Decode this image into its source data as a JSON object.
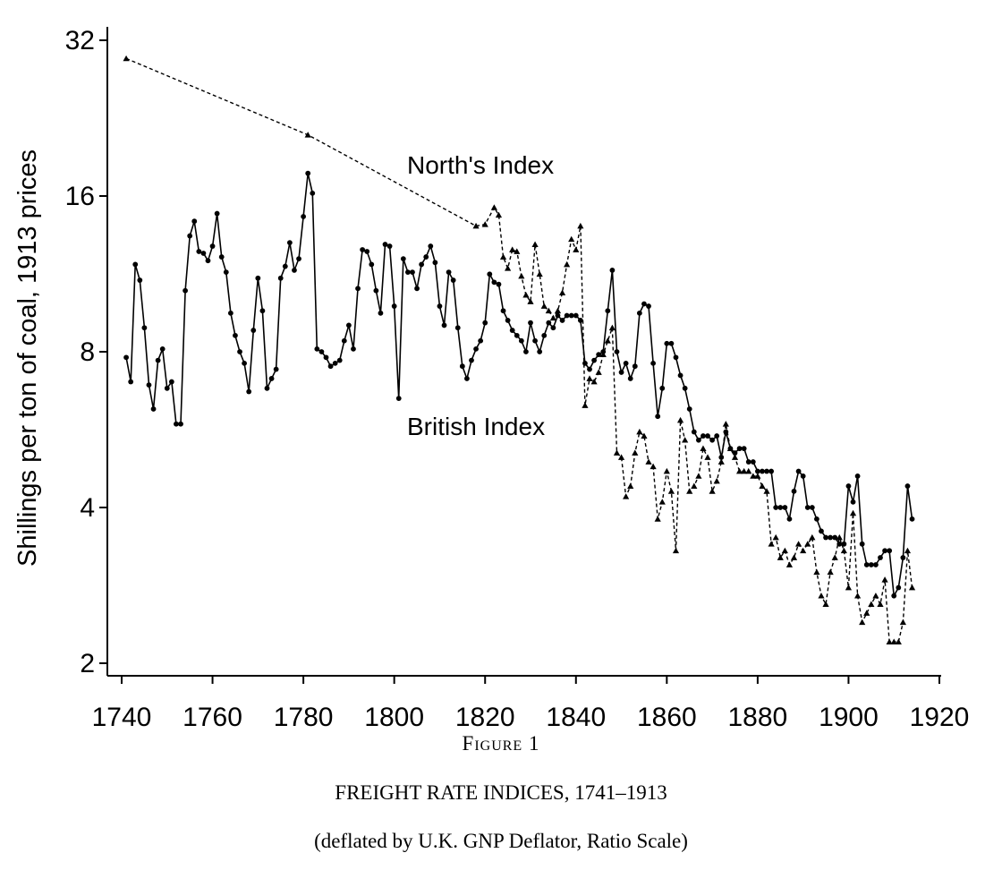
{
  "figure_label": "Figure 1",
  "title": "FREIGHT RATE INDICES, 1741–1913",
  "subtitle": "(deflated by U.K. GNP Deflator, Ratio Scale)",
  "chart_data": {
    "type": "line",
    "ylabel": "Shillings per ton of coal, 1913 prices",
    "xlabel": "",
    "yscale": "log2",
    "xlim": [
      1735,
      1920
    ],
    "ylim": [
      1.9,
      34
    ],
    "xticks": [
      1740,
      1760,
      1780,
      1800,
      1820,
      1840,
      1860,
      1880,
      1900,
      1920
    ],
    "xtick_labels": [
      "1740",
      "1760",
      "1780",
      "1800",
      "1820",
      "1840",
      "1860",
      "1880",
      "1900",
      "1920"
    ],
    "yticks": [
      2,
      4,
      8,
      16,
      32
    ],
    "ytick_labels": [
      "2",
      "4",
      "8",
      "16",
      "32"
    ],
    "annotations": [
      {
        "text": "North's Index",
        "series": "north"
      },
      {
        "text": "British Index",
        "series": "british"
      }
    ],
    "series": [
      {
        "key": "british",
        "style": "solid",
        "marker": "circle",
        "color": "#000000",
        "points": [
          [
            1741,
            7.8
          ],
          [
            1742,
            7.0
          ],
          [
            1743,
            11.8
          ],
          [
            1744,
            11.0
          ],
          [
            1745,
            8.9
          ],
          [
            1746,
            6.9
          ],
          [
            1747,
            6.2
          ],
          [
            1748,
            7.7
          ],
          [
            1749,
            8.1
          ],
          [
            1750,
            6.8
          ],
          [
            1751,
            7.0
          ],
          [
            1752,
            5.8
          ],
          [
            1753,
            5.8
          ],
          [
            1754,
            10.5
          ],
          [
            1755,
            13.4
          ],
          [
            1756,
            14.3
          ],
          [
            1757,
            12.5
          ],
          [
            1758,
            12.4
          ],
          [
            1759,
            12.0
          ],
          [
            1760,
            12.8
          ],
          [
            1761,
            14.8
          ],
          [
            1762,
            12.2
          ],
          [
            1763,
            11.4
          ],
          [
            1764,
            9.5
          ],
          [
            1765,
            8.6
          ],
          [
            1766,
            8.0
          ],
          [
            1767,
            7.6
          ],
          [
            1768,
            6.7
          ],
          [
            1769,
            8.8
          ],
          [
            1770,
            11.1
          ],
          [
            1771,
            9.6
          ],
          [
            1772,
            6.8
          ],
          [
            1773,
            7.1
          ],
          [
            1774,
            7.4
          ],
          [
            1775,
            11.1
          ],
          [
            1776,
            11.7
          ],
          [
            1777,
            13.0
          ],
          [
            1778,
            11.5
          ],
          [
            1779,
            12.1
          ],
          [
            1780,
            14.6
          ],
          [
            1781,
            17.7
          ],
          [
            1782,
            16.2
          ],
          [
            1783,
            8.1
          ],
          [
            1784,
            8.0
          ],
          [
            1785,
            7.8
          ],
          [
            1786,
            7.5
          ],
          [
            1787,
            7.6
          ],
          [
            1788,
            7.7
          ],
          [
            1789,
            8.4
          ],
          [
            1790,
            9.0
          ],
          [
            1791,
            8.1
          ],
          [
            1792,
            10.6
          ],
          [
            1793,
            12.6
          ],
          [
            1794,
            12.5
          ],
          [
            1795,
            11.8
          ],
          [
            1796,
            10.5
          ],
          [
            1797,
            9.5
          ],
          [
            1798,
            12.9
          ],
          [
            1799,
            12.8
          ],
          [
            1800,
            9.8
          ],
          [
            1801,
            6.5
          ],
          [
            1802,
            12.1
          ],
          [
            1803,
            11.4
          ],
          [
            1804,
            11.4
          ],
          [
            1805,
            10.6
          ],
          [
            1806,
            11.8
          ],
          [
            1807,
            12.2
          ],
          [
            1808,
            12.8
          ],
          [
            1809,
            11.9
          ],
          [
            1810,
            9.8
          ],
          [
            1811,
            9.0
          ],
          [
            1812,
            11.4
          ],
          [
            1813,
            11.0
          ],
          [
            1814,
            8.9
          ],
          [
            1815,
            7.5
          ],
          [
            1816,
            7.1
          ],
          [
            1817,
            7.7
          ],
          [
            1818,
            8.1
          ],
          [
            1819,
            8.4
          ],
          [
            1820,
            9.1
          ],
          [
            1821,
            11.3
          ],
          [
            1822,
            10.9
          ],
          [
            1823,
            10.8
          ],
          [
            1824,
            9.6
          ],
          [
            1825,
            9.2
          ],
          [
            1826,
            8.8
          ],
          [
            1827,
            8.6
          ],
          [
            1828,
            8.4
          ],
          [
            1829,
            8.0
          ],
          [
            1830,
            9.1
          ],
          [
            1831,
            8.4
          ],
          [
            1832,
            8.0
          ],
          [
            1833,
            8.6
          ],
          [
            1834,
            9.1
          ],
          [
            1835,
            8.9
          ],
          [
            1836,
            9.4
          ],
          [
            1837,
            9.2
          ],
          [
            1838,
            9.4
          ],
          [
            1839,
            9.4
          ],
          [
            1840,
            9.4
          ],
          [
            1841,
            9.2
          ],
          [
            1842,
            7.6
          ],
          [
            1843,
            7.4
          ],
          [
            1844,
            7.7
          ],
          [
            1845,
            7.9
          ],
          [
            1846,
            8.0
          ],
          [
            1847,
            9.6
          ],
          [
            1848,
            11.5
          ],
          [
            1849,
            8.0
          ],
          [
            1850,
            7.3
          ],
          [
            1851,
            7.6
          ],
          [
            1852,
            7.1
          ],
          [
            1853,
            7.5
          ],
          [
            1854,
            9.5
          ],
          [
            1855,
            9.9
          ],
          [
            1856,
            9.8
          ],
          [
            1857,
            7.6
          ],
          [
            1858,
            6.0
          ],
          [
            1859,
            6.8
          ],
          [
            1860,
            8.3
          ],
          [
            1861,
            8.3
          ],
          [
            1862,
            7.8
          ],
          [
            1863,
            7.2
          ],
          [
            1864,
            6.8
          ],
          [
            1865,
            6.2
          ],
          [
            1866,
            5.6
          ],
          [
            1867,
            5.4
          ],
          [
            1868,
            5.5
          ],
          [
            1869,
            5.5
          ],
          [
            1870,
            5.4
          ],
          [
            1871,
            5.5
          ],
          [
            1872,
            5.0
          ],
          [
            1873,
            5.6
          ],
          [
            1874,
            5.2
          ],
          [
            1875,
            5.1
          ],
          [
            1876,
            5.2
          ],
          [
            1877,
            5.2
          ],
          [
            1878,
            4.9
          ],
          [
            1879,
            4.9
          ],
          [
            1880,
            4.7
          ],
          [
            1881,
            4.7
          ],
          [
            1882,
            4.7
          ],
          [
            1883,
            4.7
          ],
          [
            1884,
            4.0
          ],
          [
            1885,
            4.0
          ],
          [
            1886,
            4.0
          ],
          [
            1887,
            3.8
          ],
          [
            1888,
            4.3
          ],
          [
            1889,
            4.7
          ],
          [
            1890,
            4.6
          ],
          [
            1891,
            4.0
          ],
          [
            1892,
            4.0
          ],
          [
            1893,
            3.8
          ],
          [
            1894,
            3.6
          ],
          [
            1895,
            3.5
          ],
          [
            1896,
            3.5
          ],
          [
            1897,
            3.5
          ],
          [
            1898,
            3.4
          ],
          [
            1899,
            3.4
          ],
          [
            1900,
            4.4
          ],
          [
            1901,
            4.1
          ],
          [
            1902,
            4.6
          ],
          [
            1903,
            3.4
          ],
          [
            1904,
            3.1
          ],
          [
            1905,
            3.1
          ],
          [
            1906,
            3.1
          ],
          [
            1907,
            3.2
          ],
          [
            1908,
            3.3
          ],
          [
            1909,
            3.3
          ],
          [
            1910,
            2.7
          ],
          [
            1911,
            2.8
          ],
          [
            1912,
            3.2
          ],
          [
            1913,
            4.4
          ],
          [
            1914,
            3.8
          ]
        ]
      },
      {
        "key": "north",
        "style": "dashed",
        "marker": "triangle",
        "color": "#000000",
        "points": [
          [
            1741,
            29.5
          ],
          [
            1781,
            21.0
          ],
          [
            1818,
            14.0
          ],
          [
            1820,
            14.1
          ],
          [
            1822,
            15.2
          ],
          [
            1823,
            14.7
          ],
          [
            1824,
            12.2
          ],
          [
            1825,
            11.6
          ],
          [
            1826,
            12.6
          ],
          [
            1827,
            12.5
          ],
          [
            1828,
            11.2
          ],
          [
            1829,
            10.3
          ],
          [
            1830,
            10.0
          ],
          [
            1831,
            12.9
          ],
          [
            1832,
            11.3
          ],
          [
            1833,
            9.8
          ],
          [
            1834,
            9.6
          ],
          [
            1835,
            9.3
          ],
          [
            1836,
            9.6
          ],
          [
            1837,
            10.4
          ],
          [
            1838,
            11.8
          ],
          [
            1839,
            13.2
          ],
          [
            1840,
            12.6
          ],
          [
            1841,
            14.0
          ],
          [
            1842,
            6.3
          ],
          [
            1843,
            7.1
          ],
          [
            1844,
            7.0
          ],
          [
            1845,
            7.3
          ],
          [
            1846,
            7.9
          ],
          [
            1847,
            8.4
          ],
          [
            1848,
            8.9
          ],
          [
            1849,
            5.1
          ],
          [
            1850,
            5.0
          ],
          [
            1851,
            4.2
          ],
          [
            1852,
            4.4
          ],
          [
            1853,
            5.1
          ],
          [
            1854,
            5.6
          ],
          [
            1855,
            5.5
          ],
          [
            1856,
            4.9
          ],
          [
            1857,
            4.8
          ],
          [
            1858,
            3.8
          ],
          [
            1859,
            4.1
          ],
          [
            1860,
            4.7
          ],
          [
            1861,
            4.3
          ],
          [
            1862,
            3.3
          ],
          [
            1863,
            5.9
          ],
          [
            1864,
            5.4
          ],
          [
            1865,
            4.3
          ],
          [
            1866,
            4.4
          ],
          [
            1867,
            4.6
          ],
          [
            1868,
            5.2
          ],
          [
            1869,
            5.0
          ],
          [
            1870,
            4.3
          ],
          [
            1871,
            4.5
          ],
          [
            1872,
            4.9
          ],
          [
            1873,
            5.8
          ],
          [
            1874,
            5.2
          ],
          [
            1875,
            5.0
          ],
          [
            1876,
            4.7
          ],
          [
            1877,
            4.7
          ],
          [
            1878,
            4.7
          ],
          [
            1879,
            4.6
          ],
          [
            1880,
            4.6
          ],
          [
            1881,
            4.4
          ],
          [
            1882,
            4.3
          ],
          [
            1883,
            3.4
          ],
          [
            1884,
            3.5
          ],
          [
            1885,
            3.2
          ],
          [
            1886,
            3.3
          ],
          [
            1887,
            3.1
          ],
          [
            1888,
            3.2
          ],
          [
            1889,
            3.4
          ],
          [
            1890,
            3.3
          ],
          [
            1891,
            3.4
          ],
          [
            1892,
            3.5
          ],
          [
            1893,
            3.0
          ],
          [
            1894,
            2.7
          ],
          [
            1895,
            2.6
          ],
          [
            1896,
            3.0
          ],
          [
            1897,
            3.2
          ],
          [
            1898,
            3.5
          ],
          [
            1899,
            3.3
          ],
          [
            1900,
            2.8
          ],
          [
            1901,
            3.9
          ],
          [
            1902,
            2.7
          ],
          [
            1903,
            2.4
          ],
          [
            1904,
            2.5
          ],
          [
            1905,
            2.6
          ],
          [
            1906,
            2.7
          ],
          [
            1907,
            2.6
          ],
          [
            1908,
            2.9
          ],
          [
            1909,
            2.2
          ],
          [
            1910,
            2.2
          ],
          [
            1911,
            2.2
          ],
          [
            1912,
            2.4
          ],
          [
            1913,
            3.3
          ],
          [
            1914,
            2.8
          ]
        ]
      }
    ]
  }
}
